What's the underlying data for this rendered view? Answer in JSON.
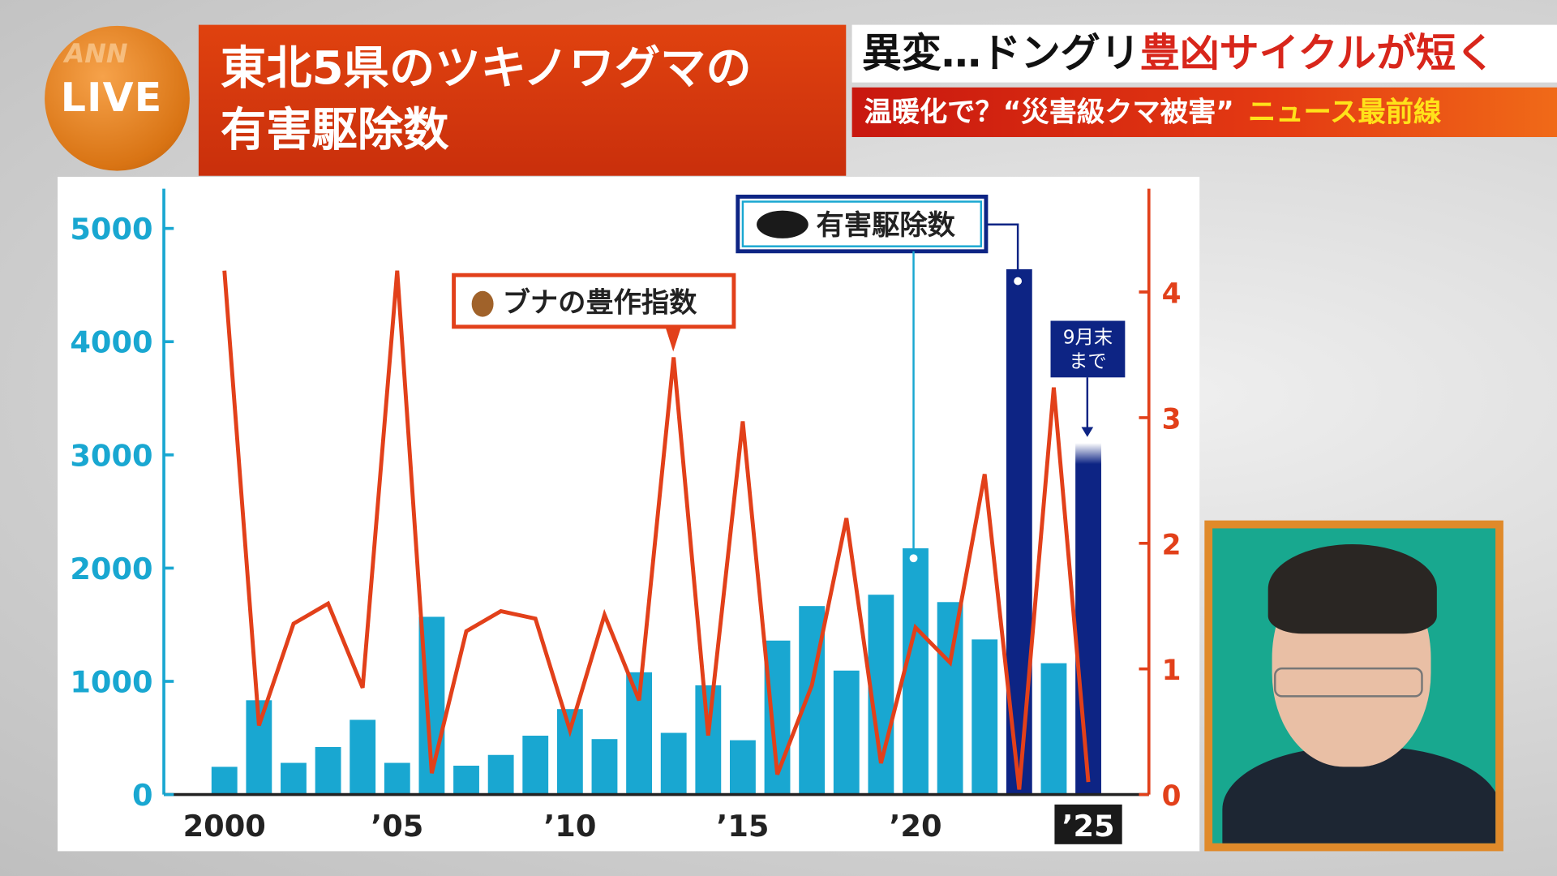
{
  "logo": {
    "ann": "ANN",
    "live": "LIVE"
  },
  "title": {
    "line1": "東北5県のツキノワグマの",
    "line2": "有害駆除数"
  },
  "headline": {
    "black": "異変…ドングリ",
    "red": "豊凶サイクルが短く"
  },
  "subbar": {
    "white": "温暖化で？“災害級クマ被害”",
    "yellow": "ニュース最前線"
  },
  "colors": {
    "bars": "#19a7d1",
    "bars_highlight": "#0d2484",
    "line": "#e2401a",
    "title_bg": "#d9380f"
  },
  "chart_data": {
    "type": "bar+line",
    "x": [
      2000,
      2001,
      2002,
      2003,
      2004,
      2005,
      2006,
      2007,
      2008,
      2009,
      2010,
      2011,
      2012,
      2013,
      2014,
      2015,
      2016,
      2017,
      2018,
      2019,
      2020,
      2021,
      2022,
      2023,
      2024,
      2025
    ],
    "xtick_labels": [
      {
        "year": 2000,
        "label": "2000"
      },
      {
        "year": 2005,
        "label": "’05"
      },
      {
        "year": 2010,
        "label": "’10"
      },
      {
        "year": 2015,
        "label": "’15"
      },
      {
        "year": 2020,
        "label": "’20"
      },
      {
        "year": 2025,
        "label": "’25"
      }
    ],
    "series": [
      {
        "name": "有害駆除数",
        "type": "bar",
        "axis": "left",
        "highlight_years": [
          2023,
          2025
        ],
        "values": [
          245,
          833,
          280,
          420,
          660,
          280,
          1570,
          255,
          350,
          520,
          755,
          490,
          1080,
          545,
          965,
          480,
          1360,
          1665,
          1095,
          1765,
          2175,
          1700,
          1370,
          4640,
          1160,
          3105
        ]
      },
      {
        "name": "ブナの豊作指数",
        "type": "line",
        "axis": "right",
        "values": [
          4.17,
          0.55,
          1.36,
          1.52,
          0.85,
          4.17,
          0.17,
          1.3,
          1.46,
          1.4,
          0.51,
          1.43,
          0.75,
          3.48,
          0.47,
          2.97,
          0.16,
          0.87,
          2.2,
          0.25,
          1.33,
          1.05,
          2.55,
          0.04,
          3.24,
          0.1
        ]
      }
    ],
    "left_axis": {
      "ylim": [
        0,
        5300
      ],
      "ticks": [
        "0",
        "1000",
        "2000",
        "3000",
        "4000",
        "5000"
      ]
    },
    "right_axis": {
      "ylim": [
        0,
        4.8
      ],
      "ticks": [
        "0",
        "1",
        "2",
        "3",
        "4"
      ]
    },
    "annotation": "9月末まで",
    "grid": false
  }
}
